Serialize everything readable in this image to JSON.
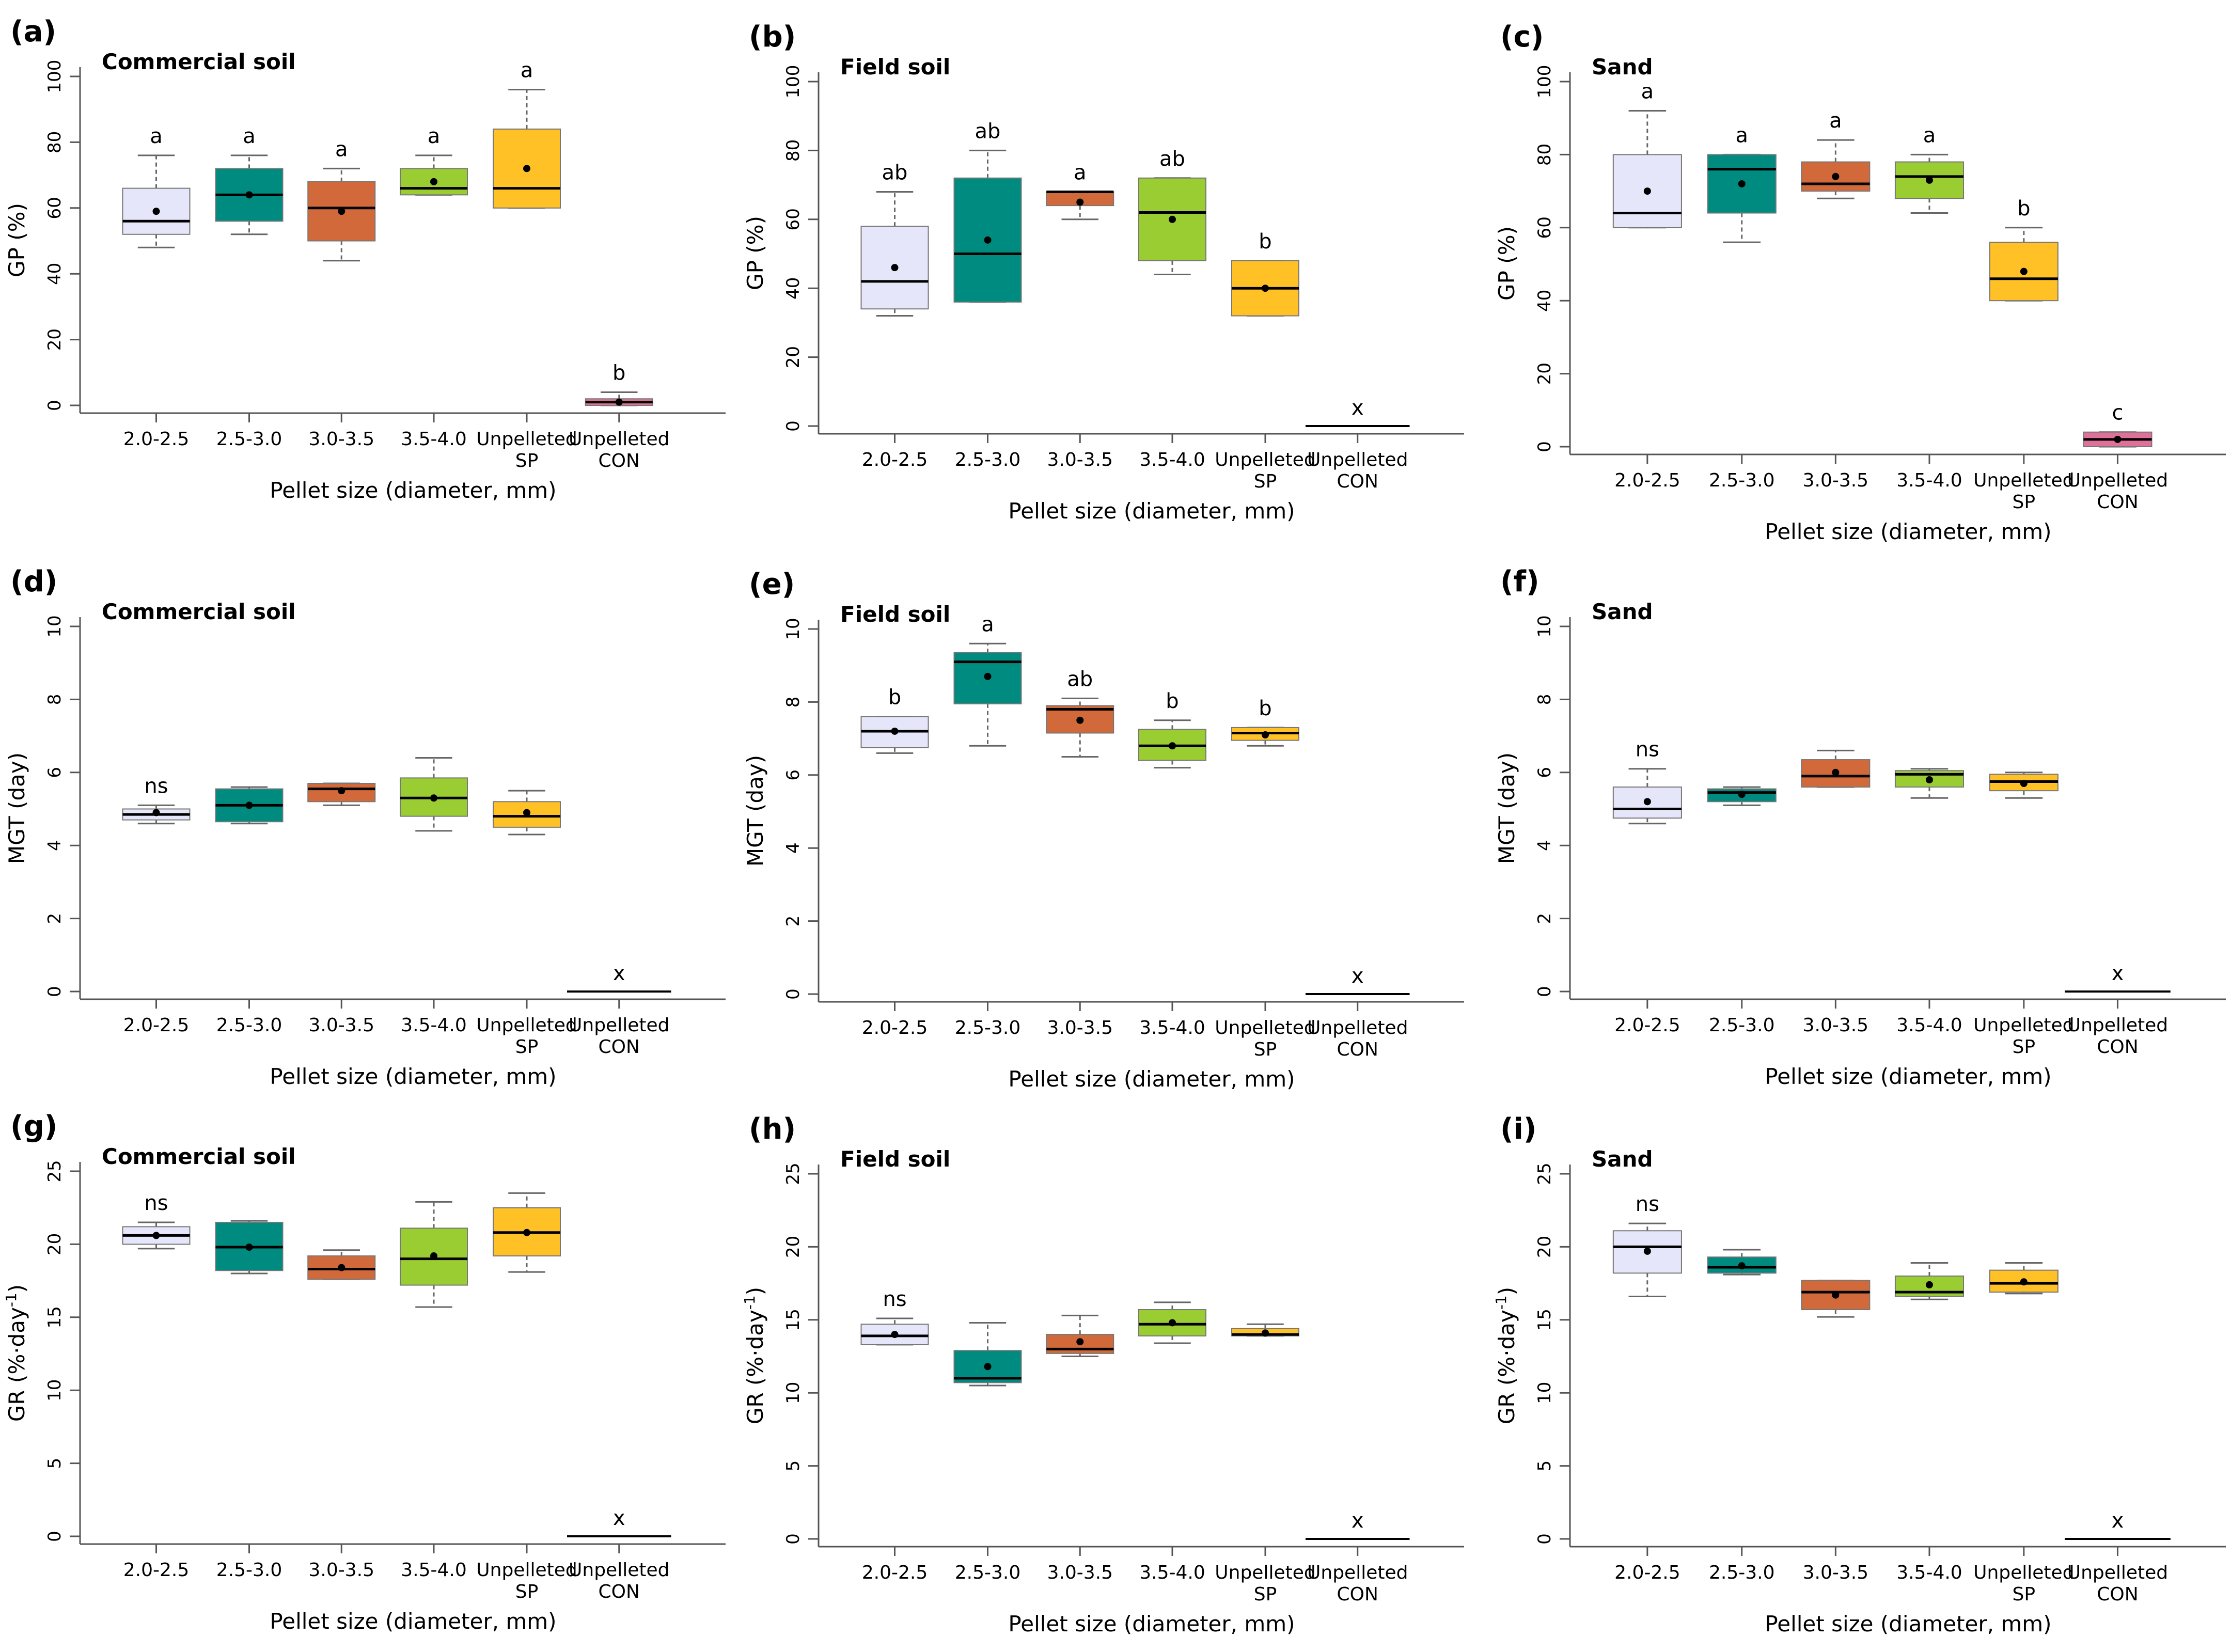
{
  "figure": {
    "x_axis_label": "Pellet size (diameter, mm)",
    "categories": [
      [
        "2.0-2.5"
      ],
      [
        "2.5-3.0"
      ],
      [
        "3.0-3.5"
      ],
      [
        "3.5-4.0"
      ],
      [
        "Unpelleted",
        "SP"
      ],
      [
        "Unpelleted",
        "CON"
      ]
    ],
    "colors": [
      "#e6e6fa",
      "#008b80",
      "#d2693a",
      "#9acd32",
      "#ffc125",
      "#e07099"
    ]
  },
  "chart_data": [
    {
      "id": "a",
      "type": "box",
      "panel_label": "(a)",
      "title": "Commercial soil",
      "ylabel": "GP (%)",
      "ylim": [
        0,
        100
      ],
      "yticks": [
        0,
        20,
        40,
        60,
        80,
        100
      ],
      "boxes": [
        {
          "category": "2.0-2.5",
          "whisker_low": 48,
          "q1": 52,
          "median": 56,
          "q3": 66,
          "whisker_high": 76,
          "mean": 59,
          "letter": "a"
        },
        {
          "category": "2.5-3.0",
          "whisker_low": 52,
          "q1": 56,
          "median": 64,
          "q3": 72,
          "whisker_high": 76,
          "mean": 64,
          "letter": "a"
        },
        {
          "category": "3.0-3.5",
          "whisker_low": 44,
          "q1": 50,
          "median": 60,
          "q3": 68,
          "whisker_high": 72,
          "mean": 59,
          "letter": "a"
        },
        {
          "category": "3.5-4.0",
          "whisker_low": 64,
          "q1": 64,
          "median": 66,
          "q3": 72,
          "whisker_high": 76,
          "mean": 68,
          "letter": "a"
        },
        {
          "category": "Unpelleted SP",
          "whisker_low": 60,
          "q1": 60,
          "median": 66,
          "q3": 84,
          "whisker_high": 96,
          "mean": 72,
          "letter": "a"
        },
        {
          "category": "Unpelleted CON",
          "whisker_low": 0,
          "q1": 0,
          "median": 1,
          "q3": 2,
          "whisker_high": 4,
          "mean": 1,
          "letter": "b"
        }
      ]
    },
    {
      "id": "b",
      "type": "box",
      "panel_label": "(b)",
      "title": "Field soil",
      "ylabel": "GP (%)",
      "ylim": [
        0,
        100
      ],
      "yticks": [
        0,
        20,
        40,
        60,
        80,
        100
      ],
      "boxes": [
        {
          "category": "2.0-2.5",
          "whisker_low": 32,
          "q1": 34,
          "median": 42,
          "q3": 58,
          "whisker_high": 68,
          "mean": 46,
          "letter": "ab"
        },
        {
          "category": "2.5-3.0",
          "whisker_low": 36,
          "q1": 36,
          "median": 50,
          "q3": 72,
          "whisker_high": 80,
          "mean": 54,
          "letter": "ab"
        },
        {
          "category": "3.0-3.5",
          "whisker_low": 60,
          "q1": 64,
          "median": 68,
          "q3": 68,
          "whisker_high": 68,
          "mean": 65,
          "letter": "a"
        },
        {
          "category": "3.5-4.0",
          "whisker_low": 44,
          "q1": 48,
          "median": 62,
          "q3": 72,
          "whisker_high": 72,
          "mean": 60,
          "letter": "ab"
        },
        {
          "category": "Unpelleted SP",
          "whisker_low": 32,
          "q1": 32,
          "median": 40,
          "q3": 48,
          "whisker_high": 48,
          "mean": 40,
          "letter": "b"
        },
        {
          "category": "Unpelleted CON",
          "zero_line": true,
          "value": 0,
          "letter": "x"
        }
      ]
    },
    {
      "id": "c",
      "type": "box",
      "panel_label": "(c)",
      "title": "Sand",
      "ylabel": "GP (%)",
      "ylim": [
        0,
        100
      ],
      "yticks": [
        0,
        20,
        40,
        60,
        80,
        100
      ],
      "boxes": [
        {
          "category": "2.0-2.5",
          "whisker_low": 60,
          "q1": 60,
          "median": 64,
          "q3": 80,
          "whisker_high": 92,
          "mean": 70,
          "letter": "a"
        },
        {
          "category": "2.5-3.0",
          "whisker_low": 56,
          "q1": 64,
          "median": 76,
          "q3": 80,
          "whisker_high": 80,
          "mean": 72,
          "letter": "a"
        },
        {
          "category": "3.0-3.5",
          "whisker_low": 68,
          "q1": 70,
          "median": 72,
          "q3": 78,
          "whisker_high": 84,
          "mean": 74,
          "letter": "a"
        },
        {
          "category": "3.5-4.0",
          "whisker_low": 64,
          "q1": 68,
          "median": 74,
          "q3": 78,
          "whisker_high": 80,
          "mean": 73,
          "letter": "a"
        },
        {
          "category": "Unpelleted SP",
          "whisker_low": 40,
          "q1": 40,
          "median": 46,
          "q3": 56,
          "whisker_high": 60,
          "mean": 48,
          "letter": "b"
        },
        {
          "category": "Unpelleted CON",
          "whisker_low": 0,
          "q1": 0,
          "median": 2,
          "q3": 4,
          "whisker_high": 4,
          "mean": 2,
          "letter": "c"
        }
      ]
    },
    {
      "id": "d",
      "type": "box",
      "panel_label": "(d)",
      "title": "Commercial soil",
      "ylabel": "MGT (day)",
      "ylim": [
        0,
        10
      ],
      "yticks": [
        0,
        2,
        4,
        6,
        8,
        10
      ],
      "boxes": [
        {
          "category": "2.0-2.5",
          "whisker_low": 4.6,
          "q1": 4.7,
          "median": 4.85,
          "q3": 5.0,
          "whisker_high": 5.1,
          "mean": 4.9,
          "letter": "ns"
        },
        {
          "category": "2.5-3.0",
          "whisker_low": 4.6,
          "q1": 4.65,
          "median": 5.1,
          "q3": 5.55,
          "whisker_high": 5.6,
          "mean": 5.1,
          "letter": ""
        },
        {
          "category": "3.0-3.5",
          "whisker_low": 5.1,
          "q1": 5.2,
          "median": 5.55,
          "q3": 5.7,
          "whisker_high": 5.7,
          "mean": 5.5,
          "letter": ""
        },
        {
          "category": "3.5-4.0",
          "whisker_low": 4.4,
          "q1": 4.8,
          "median": 5.3,
          "q3": 5.85,
          "whisker_high": 6.4,
          "mean": 5.3,
          "letter": ""
        },
        {
          "category": "Unpelleted SP",
          "whisker_low": 4.3,
          "q1": 4.5,
          "median": 4.8,
          "q3": 5.2,
          "whisker_high": 5.5,
          "mean": 4.9,
          "letter": ""
        },
        {
          "category": "Unpelleted CON",
          "zero_line": true,
          "value": 0,
          "letter": "x"
        }
      ]
    },
    {
      "id": "e",
      "type": "box",
      "panel_label": "(e)",
      "title": "Field soil",
      "ylabel": "MGT (day)",
      "ylim": [
        0,
        10
      ],
      "yticks": [
        0,
        2,
        4,
        6,
        8,
        10
      ],
      "boxes": [
        {
          "category": "2.0-2.5",
          "whisker_low": 6.6,
          "q1": 6.75,
          "median": 7.2,
          "q3": 7.6,
          "whisker_high": 7.6,
          "mean": 7.2,
          "letter": "b"
        },
        {
          "category": "2.5-3.0",
          "whisker_low": 6.8,
          "q1": 7.95,
          "median": 9.1,
          "q3": 9.35,
          "whisker_high": 9.6,
          "mean": 8.7,
          "letter": "a"
        },
        {
          "category": "3.0-3.5",
          "whisker_low": 6.5,
          "q1": 7.15,
          "median": 7.8,
          "q3": 7.9,
          "whisker_high": 8.1,
          "mean": 7.5,
          "letter": "ab"
        },
        {
          "category": "3.5-4.0",
          "whisker_low": 6.2,
          "q1": 6.4,
          "median": 6.8,
          "q3": 7.25,
          "whisker_high": 7.5,
          "mean": 6.8,
          "letter": "b"
        },
        {
          "category": "Unpelleted SP",
          "whisker_low": 6.8,
          "q1": 6.95,
          "median": 7.15,
          "q3": 7.3,
          "whisker_high": 7.3,
          "mean": 7.1,
          "letter": "b"
        },
        {
          "category": "Unpelleted CON",
          "zero_line": true,
          "value": 0,
          "letter": "x"
        }
      ]
    },
    {
      "id": "f",
      "type": "box",
      "panel_label": "(f)",
      "title": "Sand",
      "ylabel": "MGT (day)",
      "ylim": [
        0,
        10
      ],
      "yticks": [
        0,
        2,
        4,
        6,
        8,
        10
      ],
      "boxes": [
        {
          "category": "2.0-2.5",
          "whisker_low": 4.6,
          "q1": 4.75,
          "median": 5.0,
          "q3": 5.6,
          "whisker_high": 6.1,
          "mean": 5.2,
          "letter": "ns"
        },
        {
          "category": "2.5-3.0",
          "whisker_low": 5.1,
          "q1": 5.2,
          "median": 5.45,
          "q3": 5.55,
          "whisker_high": 5.6,
          "mean": 5.4,
          "letter": ""
        },
        {
          "category": "3.0-3.5",
          "whisker_low": 5.6,
          "q1": 5.6,
          "median": 5.9,
          "q3": 6.35,
          "whisker_high": 6.6,
          "mean": 6.0,
          "letter": ""
        },
        {
          "category": "3.5-4.0",
          "whisker_low": 5.3,
          "q1": 5.6,
          "median": 5.95,
          "q3": 6.05,
          "whisker_high": 6.1,
          "mean": 5.8,
          "letter": ""
        },
        {
          "category": "Unpelleted SP",
          "whisker_low": 5.3,
          "q1": 5.5,
          "median": 5.75,
          "q3": 5.95,
          "whisker_high": 6.0,
          "mean": 5.7,
          "letter": ""
        },
        {
          "category": "Unpelleted CON",
          "zero_line": true,
          "value": 0,
          "letter": "x"
        }
      ]
    },
    {
      "id": "g",
      "type": "box",
      "panel_label": "(g)",
      "title": "Commercial soil",
      "ylabel_main": "GR (%·day",
      "ylabel_sup": "-1",
      "ylabel_end": ")",
      "ylim": [
        0,
        25
      ],
      "yticks": [
        0,
        5,
        10,
        15,
        20,
        25
      ],
      "boxes": [
        {
          "category": "2.0-2.5",
          "whisker_low": 19.7,
          "q1": 20.0,
          "median": 20.6,
          "q3": 21.2,
          "whisker_high": 21.5,
          "mean": 20.6,
          "letter": "ns"
        },
        {
          "category": "2.5-3.0",
          "whisker_low": 18.0,
          "q1": 18.2,
          "median": 19.8,
          "q3": 21.5,
          "whisker_high": 21.6,
          "mean": 19.8,
          "letter": ""
        },
        {
          "category": "3.0-3.5",
          "whisker_low": 17.6,
          "q1": 17.6,
          "median": 18.3,
          "q3": 19.2,
          "whisker_high": 19.6,
          "mean": 18.4,
          "letter": ""
        },
        {
          "category": "3.5-4.0",
          "whisker_low": 15.7,
          "q1": 17.2,
          "median": 19.0,
          "q3": 21.1,
          "whisker_high": 22.9,
          "mean": 19.2,
          "letter": ""
        },
        {
          "category": "Unpelleted SP",
          "whisker_low": 18.1,
          "q1": 19.2,
          "median": 20.8,
          "q3": 22.5,
          "whisker_high": 23.5,
          "mean": 20.8,
          "letter": ""
        },
        {
          "category": "Unpelleted CON",
          "zero_line": true,
          "value": 0,
          "letter": "x"
        }
      ]
    },
    {
      "id": "h",
      "type": "box",
      "panel_label": "(h)",
      "title": "Field soil",
      "ylabel_main": "GR (%·day",
      "ylabel_sup": "-1",
      "ylabel_end": ")",
      "ylim": [
        0,
        25
      ],
      "yticks": [
        0,
        5,
        10,
        15,
        20,
        25
      ],
      "boxes": [
        {
          "category": "2.0-2.5",
          "whisker_low": 13.3,
          "q1": 13.3,
          "median": 13.9,
          "q3": 14.7,
          "whisker_high": 15.1,
          "mean": 14.0,
          "letter": "ns"
        },
        {
          "category": "2.5-3.0",
          "whisker_low": 10.5,
          "q1": 10.7,
          "median": 11.0,
          "q3": 12.9,
          "whisker_high": 14.8,
          "mean": 11.8,
          "letter": ""
        },
        {
          "category": "3.0-3.5",
          "whisker_low": 12.5,
          "q1": 12.7,
          "median": 13.0,
          "q3": 14.0,
          "whisker_high": 15.3,
          "mean": 13.5,
          "letter": ""
        },
        {
          "category": "3.5-4.0",
          "whisker_low": 13.4,
          "q1": 13.9,
          "median": 14.7,
          "q3": 15.7,
          "whisker_high": 16.2,
          "mean": 14.8,
          "letter": ""
        },
        {
          "category": "Unpelleted SP",
          "whisker_low": 13.9,
          "q1": 13.9,
          "median": 14.0,
          "q3": 14.4,
          "whisker_high": 14.7,
          "mean": 14.1,
          "letter": ""
        },
        {
          "category": "Unpelleted CON",
          "zero_line": true,
          "value": 0,
          "letter": "x"
        }
      ]
    },
    {
      "id": "i",
      "type": "box",
      "panel_label": "(i)",
      "title": "Sand",
      "ylabel_main": "GR (%·day",
      "ylabel_sup": "-1",
      "ylabel_end": ")",
      "ylim": [
        0,
        25
      ],
      "yticks": [
        0,
        5,
        10,
        15,
        20,
        25
      ],
      "boxes": [
        {
          "category": "2.0-2.5",
          "whisker_low": 16.6,
          "q1": 18.2,
          "median": 20.0,
          "q3": 21.1,
          "whisker_high": 21.6,
          "mean": 19.7,
          "letter": "ns"
        },
        {
          "category": "2.5-3.0",
          "whisker_low": 18.1,
          "q1": 18.2,
          "median": 18.6,
          "q3": 19.3,
          "whisker_high": 19.8,
          "mean": 18.7,
          "letter": ""
        },
        {
          "category": "3.0-3.5",
          "whisker_low": 15.2,
          "q1": 15.7,
          "median": 16.9,
          "q3": 17.7,
          "whisker_high": 17.7,
          "mean": 16.7,
          "letter": ""
        },
        {
          "category": "3.5-4.0",
          "whisker_low": 16.4,
          "q1": 16.6,
          "median": 16.9,
          "q3": 18.0,
          "whisker_high": 18.9,
          "mean": 17.4,
          "letter": ""
        },
        {
          "category": "Unpelleted SP",
          "whisker_low": 16.8,
          "q1": 16.9,
          "median": 17.5,
          "q3": 18.4,
          "whisker_high": 18.9,
          "mean": 17.6,
          "letter": ""
        },
        {
          "category": "Unpelleted CON",
          "zero_line": true,
          "value": 0,
          "letter": "x"
        }
      ]
    }
  ]
}
